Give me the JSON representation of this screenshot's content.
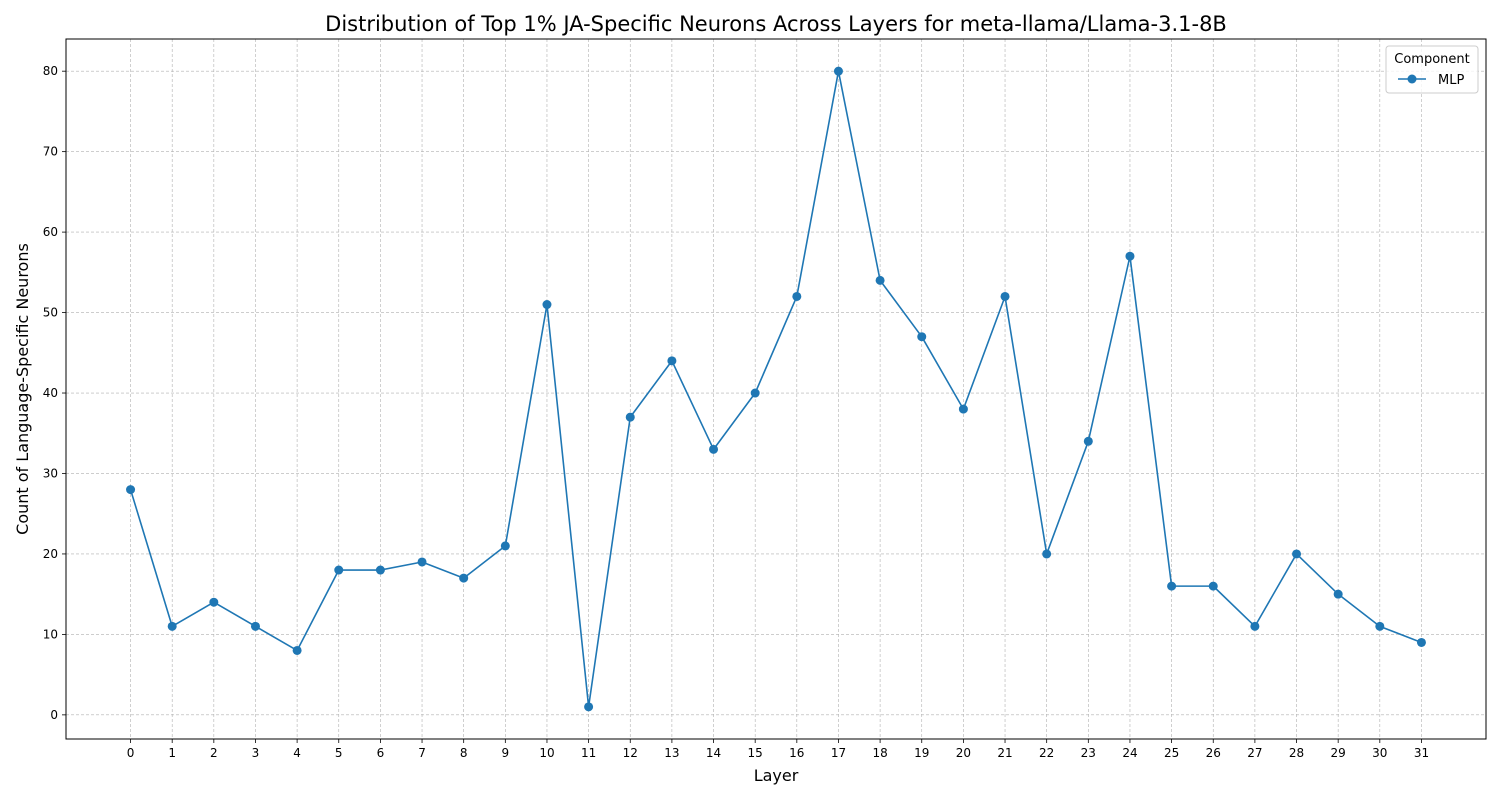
{
  "chart_data": {
    "type": "line",
    "title": "Distribution of Top 1% JA-Specific Neurons Across Layers for meta-llama/Llama-3.1-8B",
    "xlabel": "Layer",
    "ylabel": "Count of Language-Specific Neurons",
    "x": [
      0,
      1,
      2,
      3,
      4,
      5,
      6,
      7,
      8,
      9,
      10,
      11,
      12,
      13,
      14,
      15,
      16,
      17,
      18,
      19,
      20,
      21,
      22,
      23,
      24,
      25,
      26,
      27,
      28,
      29,
      30,
      31
    ],
    "x_tick_labels": [
      "0",
      "1",
      "2",
      "3",
      "4",
      "5",
      "6",
      "7",
      "8",
      "9",
      "10",
      "11",
      "12",
      "13",
      "14",
      "15",
      "16",
      "17",
      "18",
      "19",
      "20",
      "21",
      "22",
      "23",
      "24",
      "25",
      "26",
      "27",
      "28",
      "29",
      "30",
      "31"
    ],
    "xlim": [
      -1.55,
      32.55
    ],
    "ylim": [
      -3,
      84
    ],
    "y_ticks": [
      0,
      10,
      20,
      30,
      40,
      50,
      60,
      70,
      80
    ],
    "y_tick_labels": [
      "0",
      "10",
      "20",
      "30",
      "40",
      "50",
      "60",
      "70",
      "80"
    ],
    "grid": true,
    "legend": {
      "title": "Component",
      "placement": "top-right"
    },
    "series": [
      {
        "name": "MLP",
        "color": "#1f77b4",
        "marker": "circle",
        "values": [
          28,
          11,
          14,
          11,
          8,
          18,
          18,
          19,
          17,
          21,
          51,
          1,
          37,
          44,
          33,
          40,
          52,
          80,
          54,
          47,
          38,
          52,
          20,
          34,
          57,
          16,
          16,
          11,
          20,
          15,
          11,
          9
        ]
      }
    ]
  }
}
